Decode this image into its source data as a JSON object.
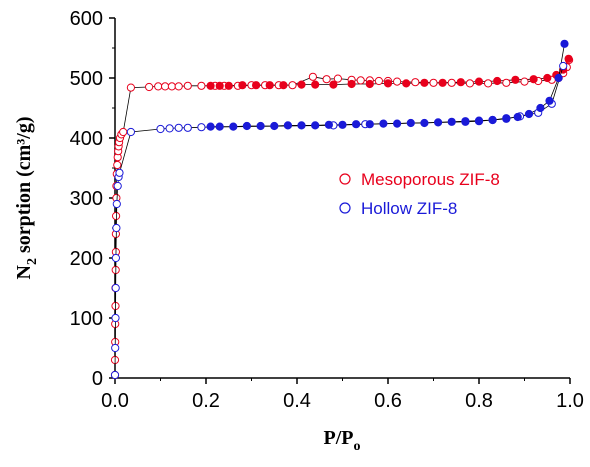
{
  "chart_data": {
    "type": "scatter",
    "title": "",
    "xlabel": "P/P",
    "xlabel_subscript": "o",
    "ylabel_prefix": "N",
    "ylabel_subscript": "2",
    "ylabel_suffix": " sorption (cm³/g)",
    "xlim": [
      0.0,
      1.0
    ],
    "ylim": [
      0,
      600
    ],
    "xticks": [
      0.0,
      0.2,
      0.4,
      0.6,
      0.8,
      1.0
    ],
    "xtick_labels": [
      "0.0",
      "0.2",
      "0.4",
      "0.6",
      "0.8",
      "1.0"
    ],
    "yticks": [
      0,
      100,
      200,
      300,
      400,
      500,
      600
    ],
    "ytick_labels": [
      "0",
      "100",
      "200",
      "300",
      "400",
      "500",
      "600"
    ],
    "grid": false,
    "legend_position": "center-right",
    "series": [
      {
        "name": "Mesoporous ZIF-8",
        "color": "#e8001c",
        "adsorption": [
          {
            "x": 0.0,
            "y": 5
          },
          {
            "x": 0.0,
            "y": 30
          },
          {
            "x": 0.0005,
            "y": 60
          },
          {
            "x": 0.0005,
            "y": 90
          },
          {
            "x": 0.001,
            "y": 120
          },
          {
            "x": 0.001,
            "y": 150
          },
          {
            "x": 0.0015,
            "y": 180
          },
          {
            "x": 0.002,
            "y": 210
          },
          {
            "x": 0.002,
            "y": 240
          },
          {
            "x": 0.0025,
            "y": 270
          },
          {
            "x": 0.003,
            "y": 300
          },
          {
            "x": 0.003,
            "y": 320
          },
          {
            "x": 0.004,
            "y": 340
          },
          {
            "x": 0.005,
            "y": 355
          },
          {
            "x": 0.006,
            "y": 368
          },
          {
            "x": 0.007,
            "y": 378
          },
          {
            "x": 0.008,
            "y": 386
          },
          {
            "x": 0.009,
            "y": 393
          },
          {
            "x": 0.011,
            "y": 400
          },
          {
            "x": 0.014,
            "y": 406
          },
          {
            "x": 0.018,
            "y": 410
          },
          {
            "x": 0.035,
            "y": 484
          },
          {
            "x": 0.075,
            "y": 485
          },
          {
            "x": 0.095,
            "y": 486
          },
          {
            "x": 0.11,
            "y": 486
          },
          {
            "x": 0.125,
            "y": 486
          },
          {
            "x": 0.14,
            "y": 486
          },
          {
            "x": 0.16,
            "y": 487
          },
          {
            "x": 0.19,
            "y": 487
          },
          {
            "x": 0.22,
            "y": 487
          },
          {
            "x": 0.24,
            "y": 487
          },
          {
            "x": 0.27,
            "y": 487
          },
          {
            "x": 0.3,
            "y": 488
          },
          {
            "x": 0.33,
            "y": 488
          },
          {
            "x": 0.36,
            "y": 488
          },
          {
            "x": 0.39,
            "y": 488
          },
          {
            "x": 0.435,
            "y": 502
          },
          {
            "x": 0.465,
            "y": 498
          },
          {
            "x": 0.49,
            "y": 499
          },
          {
            "x": 0.52,
            "y": 497
          },
          {
            "x": 0.54,
            "y": 496
          },
          {
            "x": 0.56,
            "y": 496
          },
          {
            "x": 0.58,
            "y": 495
          },
          {
            "x": 0.6,
            "y": 495
          },
          {
            "x": 0.62,
            "y": 494
          },
          {
            "x": 0.66,
            "y": 493
          },
          {
            "x": 0.7,
            "y": 492
          },
          {
            "x": 0.74,
            "y": 492
          },
          {
            "x": 0.78,
            "y": 491
          },
          {
            "x": 0.82,
            "y": 491
          },
          {
            "x": 0.86,
            "y": 492
          },
          {
            "x": 0.9,
            "y": 494
          },
          {
            "x": 0.93,
            "y": 495
          },
          {
            "x": 0.96,
            "y": 497
          },
          {
            "x": 0.975,
            "y": 500
          },
          {
            "x": 0.985,
            "y": 508
          },
          {
            "x": 0.993,
            "y": 518
          },
          {
            "x": 0.998,
            "y": 530
          }
        ],
        "desorption": [
          {
            "x": 0.997,
            "y": 532
          },
          {
            "x": 0.985,
            "y": 514
          },
          {
            "x": 0.97,
            "y": 505
          },
          {
            "x": 0.95,
            "y": 500
          },
          {
            "x": 0.92,
            "y": 498
          },
          {
            "x": 0.88,
            "y": 497
          },
          {
            "x": 0.84,
            "y": 495
          },
          {
            "x": 0.8,
            "y": 494
          },
          {
            "x": 0.76,
            "y": 493
          },
          {
            "x": 0.72,
            "y": 492
          },
          {
            "x": 0.68,
            "y": 492
          },
          {
            "x": 0.64,
            "y": 491
          },
          {
            "x": 0.6,
            "y": 491
          },
          {
            "x": 0.56,
            "y": 490
          },
          {
            "x": 0.52,
            "y": 490
          },
          {
            "x": 0.48,
            "y": 489
          },
          {
            "x": 0.44,
            "y": 489
          },
          {
            "x": 0.41,
            "y": 489
          },
          {
            "x": 0.37,
            "y": 488
          },
          {
            "x": 0.34,
            "y": 488
          },
          {
            "x": 0.31,
            "y": 488
          },
          {
            "x": 0.28,
            "y": 488
          },
          {
            "x": 0.25,
            "y": 487
          },
          {
            "x": 0.23,
            "y": 487
          },
          {
            "x": 0.21,
            "y": 487
          }
        ]
      },
      {
        "name": "Hollow ZIF-8",
        "color": "#1a1ad8",
        "adsorption": [
          {
            "x": 0.0,
            "y": 5
          },
          {
            "x": 0.0005,
            "y": 50
          },
          {
            "x": 0.001,
            "y": 100
          },
          {
            "x": 0.0015,
            "y": 150
          },
          {
            "x": 0.002,
            "y": 200
          },
          {
            "x": 0.003,
            "y": 250
          },
          {
            "x": 0.004,
            "y": 290
          },
          {
            "x": 0.006,
            "y": 320
          },
          {
            "x": 0.008,
            "y": 335
          },
          {
            "x": 0.01,
            "y": 342
          },
          {
            "x": 0.035,
            "y": 410
          },
          {
            "x": 0.1,
            "y": 415
          },
          {
            "x": 0.12,
            "y": 416
          },
          {
            "x": 0.14,
            "y": 417
          },
          {
            "x": 0.16,
            "y": 417
          },
          {
            "x": 0.19,
            "y": 418
          },
          {
            "x": 0.48,
            "y": 421
          },
          {
            "x": 0.55,
            "y": 423
          },
          {
            "x": 0.77,
            "y": 427
          },
          {
            "x": 0.8,
            "y": 428
          },
          {
            "x": 0.83,
            "y": 430
          },
          {
            "x": 0.86,
            "y": 432
          },
          {
            "x": 0.89,
            "y": 436
          },
          {
            "x": 0.93,
            "y": 442
          },
          {
            "x": 0.96,
            "y": 457
          },
          {
            "x": 0.985,
            "y": 520
          }
        ],
        "desorption": [
          {
            "x": 0.988,
            "y": 557
          },
          {
            "x": 0.975,
            "y": 500
          },
          {
            "x": 0.955,
            "y": 462
          },
          {
            "x": 0.935,
            "y": 450
          },
          {
            "x": 0.91,
            "y": 440
          },
          {
            "x": 0.885,
            "y": 435
          },
          {
            "x": 0.86,
            "y": 433
          },
          {
            "x": 0.83,
            "y": 430
          },
          {
            "x": 0.8,
            "y": 429
          },
          {
            "x": 0.77,
            "y": 428
          },
          {
            "x": 0.74,
            "y": 427
          },
          {
            "x": 0.71,
            "y": 426
          },
          {
            "x": 0.68,
            "y": 425
          },
          {
            "x": 0.65,
            "y": 425
          },
          {
            "x": 0.62,
            "y": 424
          },
          {
            "x": 0.59,
            "y": 424
          },
          {
            "x": 0.56,
            "y": 423
          },
          {
            "x": 0.53,
            "y": 423
          },
          {
            "x": 0.5,
            "y": 422
          },
          {
            "x": 0.47,
            "y": 422
          },
          {
            "x": 0.44,
            "y": 421
          },
          {
            "x": 0.41,
            "y": 421
          },
          {
            "x": 0.38,
            "y": 421
          },
          {
            "x": 0.35,
            "y": 420
          },
          {
            "x": 0.32,
            "y": 420
          },
          {
            "x": 0.29,
            "y": 420
          },
          {
            "x": 0.26,
            "y": 419
          },
          {
            "x": 0.23,
            "y": 419
          },
          {
            "x": 0.21,
            "y": 419
          }
        ]
      }
    ]
  }
}
